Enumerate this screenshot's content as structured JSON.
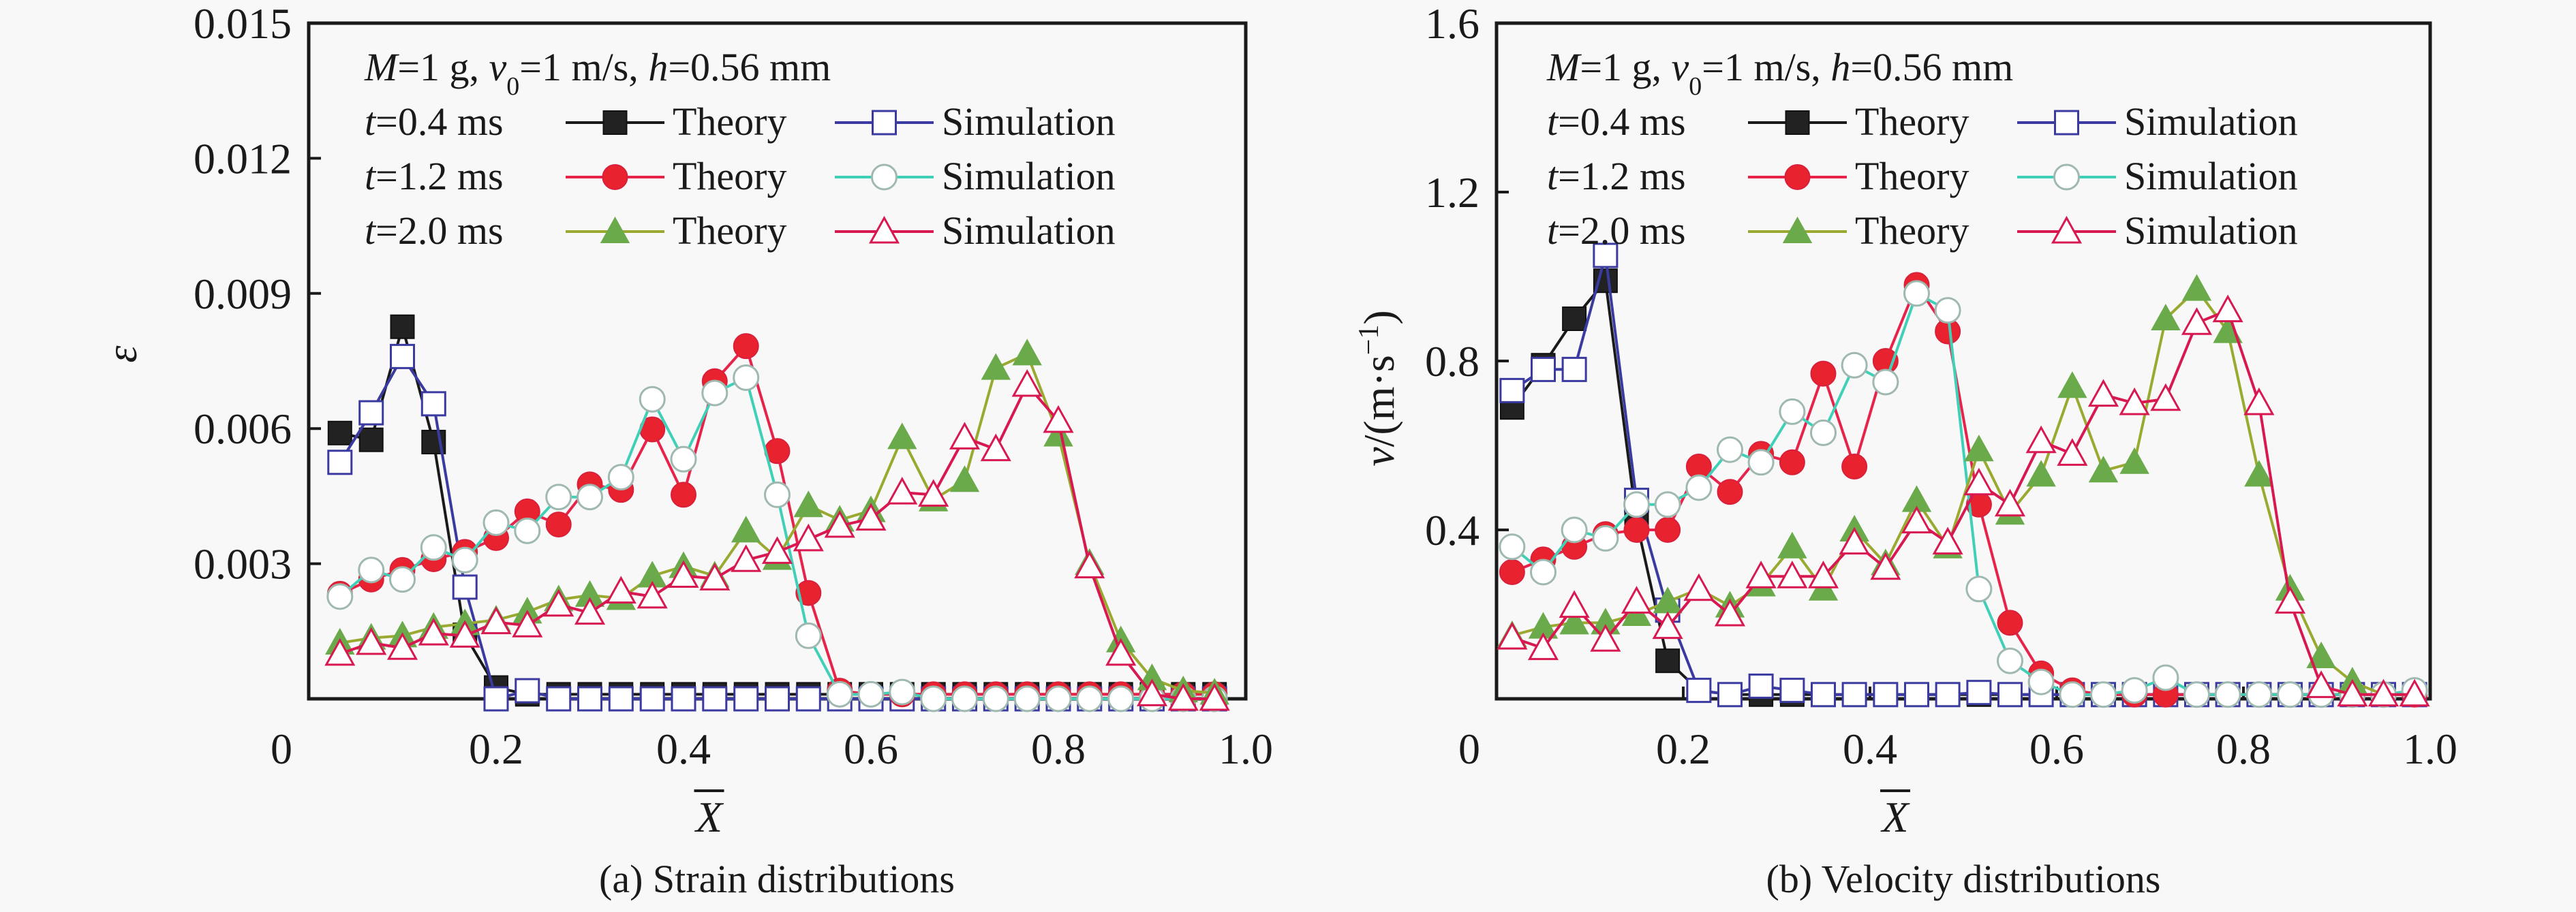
{
  "chart_data": [
    {
      "id": "strain",
      "type": "line",
      "caption": "(a) Strain distributions",
      "xlabel": "X̄",
      "xlabel_letter": "X",
      "ylabel": "ε",
      "xlim": [
        0,
        1.0
      ],
      "ylim": [
        0,
        0.015
      ],
      "xticks": [
        0,
        0.2,
        0.4,
        0.6,
        0.8,
        1.0
      ],
      "xtick_labels": [
        "0",
        "0.2",
        "0.4",
        "0.6",
        "0.8",
        "1.0"
      ],
      "yticks": [
        0.003,
        0.006,
        0.009,
        0.012,
        0.015
      ],
      "ytick_labels": [
        "0.003",
        "0.006",
        "0.009",
        "0.012",
        "0.015"
      ],
      "annotation": {
        "M": "M",
        "M_val": "=1 g, ",
        "v": "v",
        "v_sub": "0",
        "v_val": "=1 m/s, ",
        "h": "h",
        "h_val": "=0.56 mm"
      },
      "legend_position": "top-left",
      "x": [
        0.0333,
        0.0667,
        0.1,
        0.1333,
        0.1667,
        0.2,
        0.2333,
        0.2667,
        0.3,
        0.3333,
        0.3667,
        0.4,
        0.4333,
        0.4667,
        0.5,
        0.5333,
        0.5667,
        0.6,
        0.6333,
        0.6667,
        0.7,
        0.7333,
        0.7667,
        0.8,
        0.8333,
        0.8667,
        0.9,
        0.9333,
        0.9667
      ],
      "series": [
        {
          "name": "t=0.4 ms Theory",
          "time": "0.4",
          "kind": "Theory",
          "color": "#1a1a1a",
          "marker": "square-filled",
          "values": [
            0.0059,
            0.00575,
            0.00826,
            0.0057,
            0.00142,
            0.00025,
            0.0001,
            0.0001,
            0.0001,
            0.0001,
            0.0001,
            0.0001,
            0.0001,
            0.0001,
            0.0001,
            0.0001,
            0.0001,
            0.0001,
            0.0001,
            0.0001,
            0.0001,
            0.0001,
            0.0001,
            0.0001,
            0.0001,
            0.0001,
            0.0001,
            0.0001,
            0.0001
          ]
        },
        {
          "name": "t=0.4 ms Simulation",
          "time": "0.4",
          "kind": "Simulation",
          "color": "#3a3aa0",
          "marker": "square-open",
          "values": [
            0.00525,
            0.00635,
            0.0076,
            0.00655,
            0.00248,
            0.0,
            0.00018,
            0.0,
            0.0,
            0.0,
            0.0,
            0.0,
            0.0,
            0.0,
            0.0,
            0.0,
            0.0,
            0.0,
            0.0,
            0.0,
            0.0,
            0.0,
            0.0,
            0.0,
            0.0,
            0.0,
            0.0,
            0.0,
            0.0
          ]
        },
        {
          "name": "t=1.2 ms Theory",
          "time": "1.2",
          "kind": "Theory",
          "color": "#e8234a",
          "marker": "circle-filled",
          "values": [
            0.00233,
            0.00265,
            0.00286,
            0.0031,
            0.00326,
            0.00357,
            0.00416,
            0.00387,
            0.00476,
            0.00464,
            0.00598,
            0.00453,
            0.00705,
            0.00783,
            0.0055,
            0.00235,
            0.00018,
            0.0001,
            0.0001,
            0.0001,
            0.0001,
            0.0001,
            0.0001,
            0.0001,
            0.0001,
            0.0001,
            0.0001,
            0.0001,
            0.0001
          ]
        },
        {
          "name": "t=1.2 ms Simulation",
          "time": "1.2",
          "kind": "Simulation",
          "color": "#40d0b8",
          "marker": "circle-open",
          "values": [
            0.00227,
            0.00286,
            0.00265,
            0.00336,
            0.00308,
            0.00391,
            0.00373,
            0.00448,
            0.00448,
            0.00492,
            0.00665,
            0.00532,
            0.00679,
            0.00713,
            0.00453,
            0.0014,
            0.0001,
            0.0001,
            0.00015,
            0.0,
            0.0,
            0.0,
            0.0,
            0.0,
            0.0,
            0.0,
            0.0,
            0.0,
            0.0
          ]
        },
        {
          "name": "t=2.0 ms Theory",
          "time": "2.0",
          "kind": "Theory",
          "color": "#9aaa30",
          "marker": "triangle-filled",
          "values": [
            0.00124,
            0.00135,
            0.0014,
            0.00159,
            0.00167,
            0.00175,
            0.00193,
            0.0022,
            0.0023,
            0.00223,
            0.00273,
            0.00294,
            0.00273,
            0.00373,
            0.00312,
            0.00429,
            0.00397,
            0.00418,
            0.0058,
            0.00442,
            0.00485,
            0.00734,
            0.00766,
            0.00586,
            0.00301,
            0.00129,
            0.00045,
            0.00018,
            0.00013
          ]
        },
        {
          "name": "t=2.0 ms Simulation",
          "time": "2.0",
          "kind": "Simulation",
          "color": "#d81850",
          "marker": "triangle-open",
          "values": [
            0.001,
            0.00124,
            0.00113,
            0.00145,
            0.0014,
            0.0017,
            0.00163,
            0.00209,
            0.00191,
            0.00238,
            0.00227,
            0.00273,
            0.00267,
            0.00308,
            0.00326,
            0.00354,
            0.00384,
            0.004,
            0.00458,
            0.00453,
            0.0058,
            0.00554,
            0.00697,
            0.00617,
            0.00294,
            0.001,
            0.0001,
            0.0,
            0.0
          ]
        }
      ]
    },
    {
      "id": "velocity",
      "type": "line",
      "caption": "(b) Velocity distributions",
      "xlabel": "X̄",
      "xlabel_letter": "X",
      "ylabel": "v/(m·s⁻¹)",
      "ylabel_v": "v",
      "ylabel_unit": "/(m·s",
      "ylabel_exp": "−1",
      "ylabel_close": ")",
      "xlim": [
        0,
        1.0
      ],
      "ylim": [
        0,
        1.6
      ],
      "xticks": [
        0,
        0.2,
        0.4,
        0.6,
        0.8,
        1.0
      ],
      "xtick_labels": [
        "0",
        "0.2",
        "0.4",
        "0.6",
        "0.8",
        "1.0"
      ],
      "yticks": [
        0.4,
        0.8,
        1.2,
        1.6
      ],
      "ytick_labels": [
        "0.4",
        "0.8",
        "1.2",
        "1.6"
      ],
      "annotation": {
        "M": "M",
        "M_val": "=1 g, ",
        "v": "v",
        "v_sub": "0",
        "v_val": "=1 m/s, ",
        "h": "h",
        "h_val": "=0.56 mm"
      },
      "legend_position": "top-left",
      "x": [
        0.0167,
        0.05,
        0.0833,
        0.1167,
        0.15,
        0.1833,
        0.2167,
        0.25,
        0.2833,
        0.3167,
        0.35,
        0.3833,
        0.4167,
        0.45,
        0.4833,
        0.5167,
        0.55,
        0.5833,
        0.6167,
        0.65,
        0.6833,
        0.7167,
        0.75,
        0.7833,
        0.8167,
        0.85,
        0.8833,
        0.9167,
        0.95,
        0.9833
      ],
      "series": [
        {
          "name": "t=0.4 ms Theory",
          "time": "0.4",
          "kind": "Theory",
          "color": "#1a1a1a",
          "marker": "square-filled",
          "values": [
            0.69,
            0.79,
            0.9,
            0.99,
            0.42,
            0.09,
            0.02,
            0.01,
            0.01,
            0.01,
            0.01,
            0.01,
            0.01,
            0.01,
            0.01,
            0.01,
            0.01,
            0.01,
            0.01,
            0.01,
            0.01,
            0.01,
            0.01,
            0.01,
            0.01,
            0.01,
            0.01,
            0.01,
            0.01,
            0.01
          ]
        },
        {
          "name": "t=0.4 ms Simulation",
          "time": "0.4",
          "kind": "Simulation",
          "color": "#3a3aa0",
          "marker": "square-open",
          "values": [
            0.73,
            0.78,
            0.78,
            1.05,
            0.47,
            0.21,
            0.02,
            0.01,
            0.03,
            0.02,
            0.01,
            0.01,
            0.01,
            0.01,
            0.01,
            0.015,
            0.01,
            0.01,
            0.01,
            0.01,
            0.01,
            0.01,
            0.01,
            0.01,
            0.01,
            0.01,
            0.01,
            0.01,
            0.01,
            0.01
          ]
        },
        {
          "name": "t=1.2 ms Theory",
          "time": "1.2",
          "kind": "Theory",
          "color": "#e8234a",
          "marker": "circle-filled",
          "values": [
            0.3,
            0.33,
            0.36,
            0.39,
            0.4,
            0.4,
            0.55,
            0.49,
            0.58,
            0.56,
            0.77,
            0.55,
            0.8,
            0.98,
            0.87,
            0.46,
            0.18,
            0.06,
            0.02,
            0.01,
            0.01,
            0.01,
            0.01,
            0.01,
            0.01,
            0.01,
            0.01,
            0.01,
            0.01,
            0.01
          ]
        },
        {
          "name": "t=1.2 ms Simulation",
          "time": "1.2",
          "kind": "Simulation",
          "color": "#40d0b8",
          "marker": "circle-open",
          "values": [
            0.36,
            0.3,
            0.4,
            0.38,
            0.46,
            0.46,
            0.5,
            0.59,
            0.56,
            0.68,
            0.63,
            0.79,
            0.75,
            0.96,
            0.92,
            0.26,
            0.09,
            0.04,
            0.01,
            0.01,
            0.02,
            0.05,
            0.01,
            0.01,
            0.01,
            0.01,
            0.01,
            0.01,
            0.01,
            0.02
          ]
        },
        {
          "name": "t=2.0 ms Theory",
          "time": "2.0",
          "kind": "Theory",
          "color": "#9aaa30",
          "marker": "triangle-filled",
          "values": [
            0.15,
            0.17,
            0.18,
            0.18,
            0.2,
            0.23,
            0.26,
            0.22,
            0.27,
            0.36,
            0.26,
            0.4,
            0.32,
            0.47,
            0.36,
            0.59,
            0.44,
            0.53,
            0.74,
            0.54,
            0.56,
            0.9,
            0.97,
            0.87,
            0.53,
            0.26,
            0.1,
            0.04,
            0.01,
            0.01
          ]
        },
        {
          "name": "t=2.0 ms Simulation",
          "time": "2.0",
          "kind": "Simulation",
          "color": "#d81850",
          "marker": "triangle-open",
          "values": [
            0.145,
            0.12,
            0.22,
            0.14,
            0.23,
            0.17,
            0.26,
            0.2,
            0.29,
            0.29,
            0.29,
            0.37,
            0.31,
            0.42,
            0.37,
            0.51,
            0.46,
            0.61,
            0.58,
            0.72,
            0.7,
            0.71,
            0.89,
            0.92,
            0.7,
            0.23,
            0.03,
            0.01,
            0.01,
            0.01
          ]
        }
      ]
    }
  ],
  "legend": {
    "rows": [
      {
        "prefix": "t",
        "time": "=0.4 ms",
        "theory": "Theory",
        "simulation": "Simulation"
      },
      {
        "prefix": "t",
        "time": "=1.2 ms",
        "theory": "Theory",
        "simulation": "Simulation"
      },
      {
        "prefix": "t",
        "time": "=2.0 ms",
        "theory": "Theory",
        "simulation": "Simulation"
      }
    ]
  }
}
